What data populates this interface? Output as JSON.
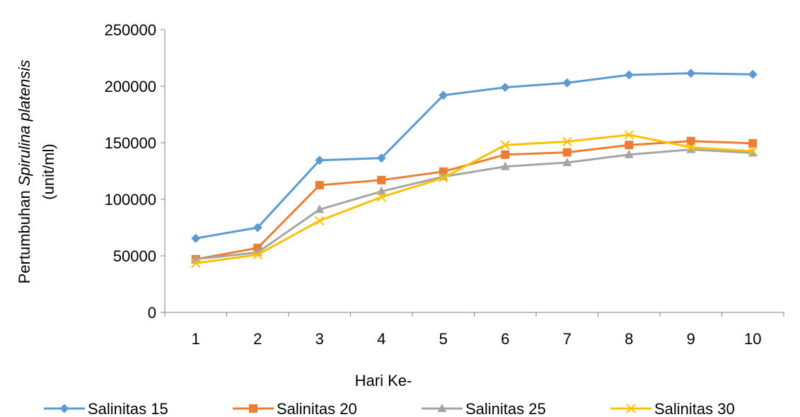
{
  "chart_data": {
    "type": "line",
    "xlabel": "Hari Ke-",
    "ylabel_prefix": "Pertumbuhan ",
    "ylabel_italic": "Spirulina platensis",
    "ylabel_line2": "(unit/ml)",
    "categories": [
      "1",
      "2",
      "3",
      "4",
      "5",
      "6",
      "7",
      "8",
      "9",
      "10"
    ],
    "ylim": [
      0,
      250000
    ],
    "yticks": [
      0,
      50000,
      100000,
      150000,
      200000,
      250000
    ],
    "ytick_labels": [
      "0",
      "50000",
      "100000",
      "150000",
      "200000",
      "250000"
    ],
    "grid": false,
    "legend_position": "bottom",
    "series": [
      {
        "name": "Salinitas 15",
        "color": "#5B9BD5",
        "marker": "diamond",
        "values": [
          65500,
          75000,
          134500,
          136500,
          192000,
          199000,
          203000,
          210000,
          211500,
          210500
        ]
      },
      {
        "name": "Salinitas 20",
        "color": "#ED7D31",
        "marker": "square",
        "values": [
          47000,
          57000,
          112500,
          117000,
          124500,
          139500,
          141500,
          148000,
          151500,
          149500
        ]
      },
      {
        "name": "Salinitas 25",
        "color": "#A5A5A5",
        "marker": "triangle",
        "values": [
          47000,
          53000,
          91000,
          107000,
          120000,
          129000,
          132500,
          139500,
          144000,
          141000
        ]
      },
      {
        "name": "Salinitas 30",
        "color": "#FFC000",
        "marker": "x",
        "values": [
          43500,
          51000,
          81000,
          102000,
          119000,
          148000,
          151000,
          157000,
          146000,
          142500
        ]
      }
    ]
  }
}
